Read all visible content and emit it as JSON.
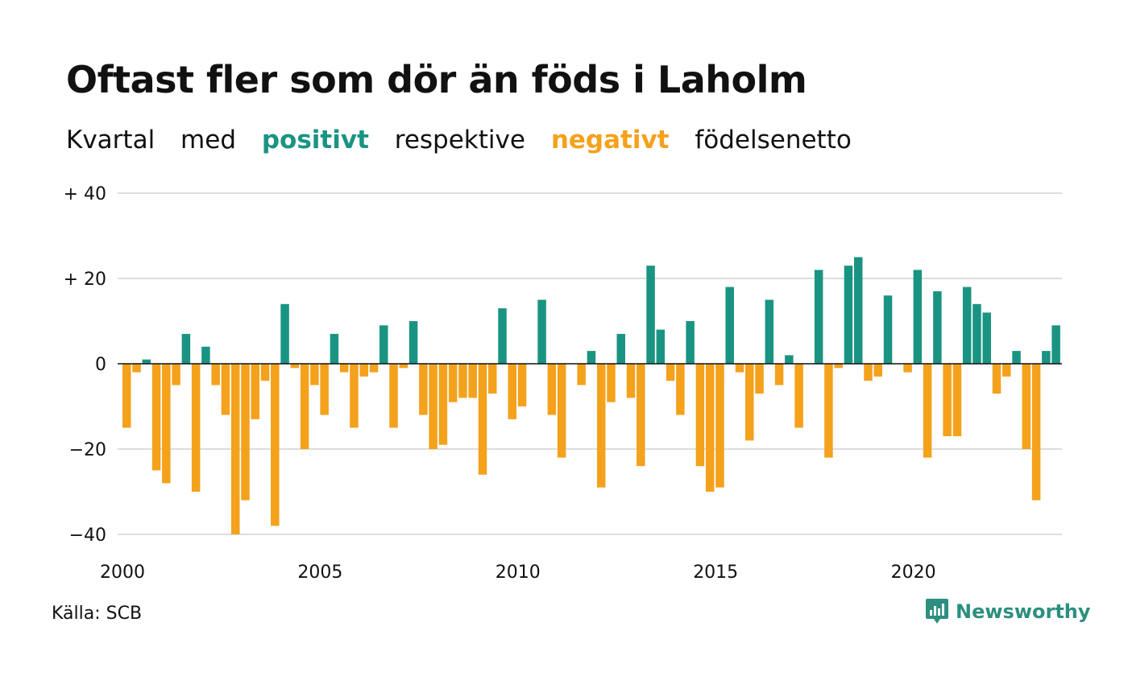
{
  "header": {
    "title": "Oftast fler som dör än föds i Laholm",
    "subtitle_parts": [
      "Kvartal",
      "med",
      "positivt",
      "respektive",
      "negativt",
      "födelsenetto"
    ]
  },
  "footer": {
    "source": "Källa: SCB",
    "brand": "Newsworthy"
  },
  "colors": {
    "positive": "#1a9482",
    "negative": "#f4a11c",
    "grid": "#dddddd",
    "text": "#111111"
  },
  "chart_data": {
    "type": "bar",
    "x_unit": "quarter",
    "start_year": 2000,
    "start_quarter": 1,
    "values": [
      -15,
      -2,
      1,
      -25,
      -28,
      -5,
      7,
      -30,
      4,
      -5,
      -12,
      -40,
      -32,
      -13,
      -4,
      -38,
      14,
      -1,
      -20,
      -5,
      -12,
      7,
      -2,
      -15,
      -3,
      -2,
      9,
      -15,
      -1,
      10,
      -12,
      -20,
      -19,
      -9,
      -8,
      -8,
      -26,
      -7,
      13,
      -13,
      -10,
      0,
      15,
      -12,
      -22,
      0,
      -5,
      3,
      -29,
      -9,
      7,
      -8,
      -24,
      23,
      8,
      -4,
      -12,
      10,
      -24,
      -30,
      -29,
      18,
      -2,
      -18,
      -7,
      15,
      -5,
      2,
      -15,
      0,
      22,
      -22,
      -1,
      23,
      25,
      -4,
      -3,
      16,
      0,
      -2,
      22,
      -22,
      17,
      -17,
      -17,
      18,
      14,
      12,
      -7,
      -3,
      3,
      -20,
      -32,
      3,
      9
    ],
    "ylim": [
      -40,
      40
    ],
    "y_ticks": [
      {
        "value": 40,
        "label": "+ 40"
      },
      {
        "value": 20,
        "label": "+ 20"
      },
      {
        "value": 0,
        "label": "0"
      },
      {
        "value": -20,
        "label": "−20"
      },
      {
        "value": -40,
        "label": "−40"
      }
    ],
    "x_ticks": [
      {
        "value": 2000,
        "label": "2000"
      },
      {
        "value": 2005,
        "label": "2005"
      },
      {
        "value": 2010,
        "label": "2010"
      },
      {
        "value": 2015,
        "label": "2015"
      },
      {
        "value": 2020,
        "label": "2020"
      }
    ],
    "grid": true
  }
}
